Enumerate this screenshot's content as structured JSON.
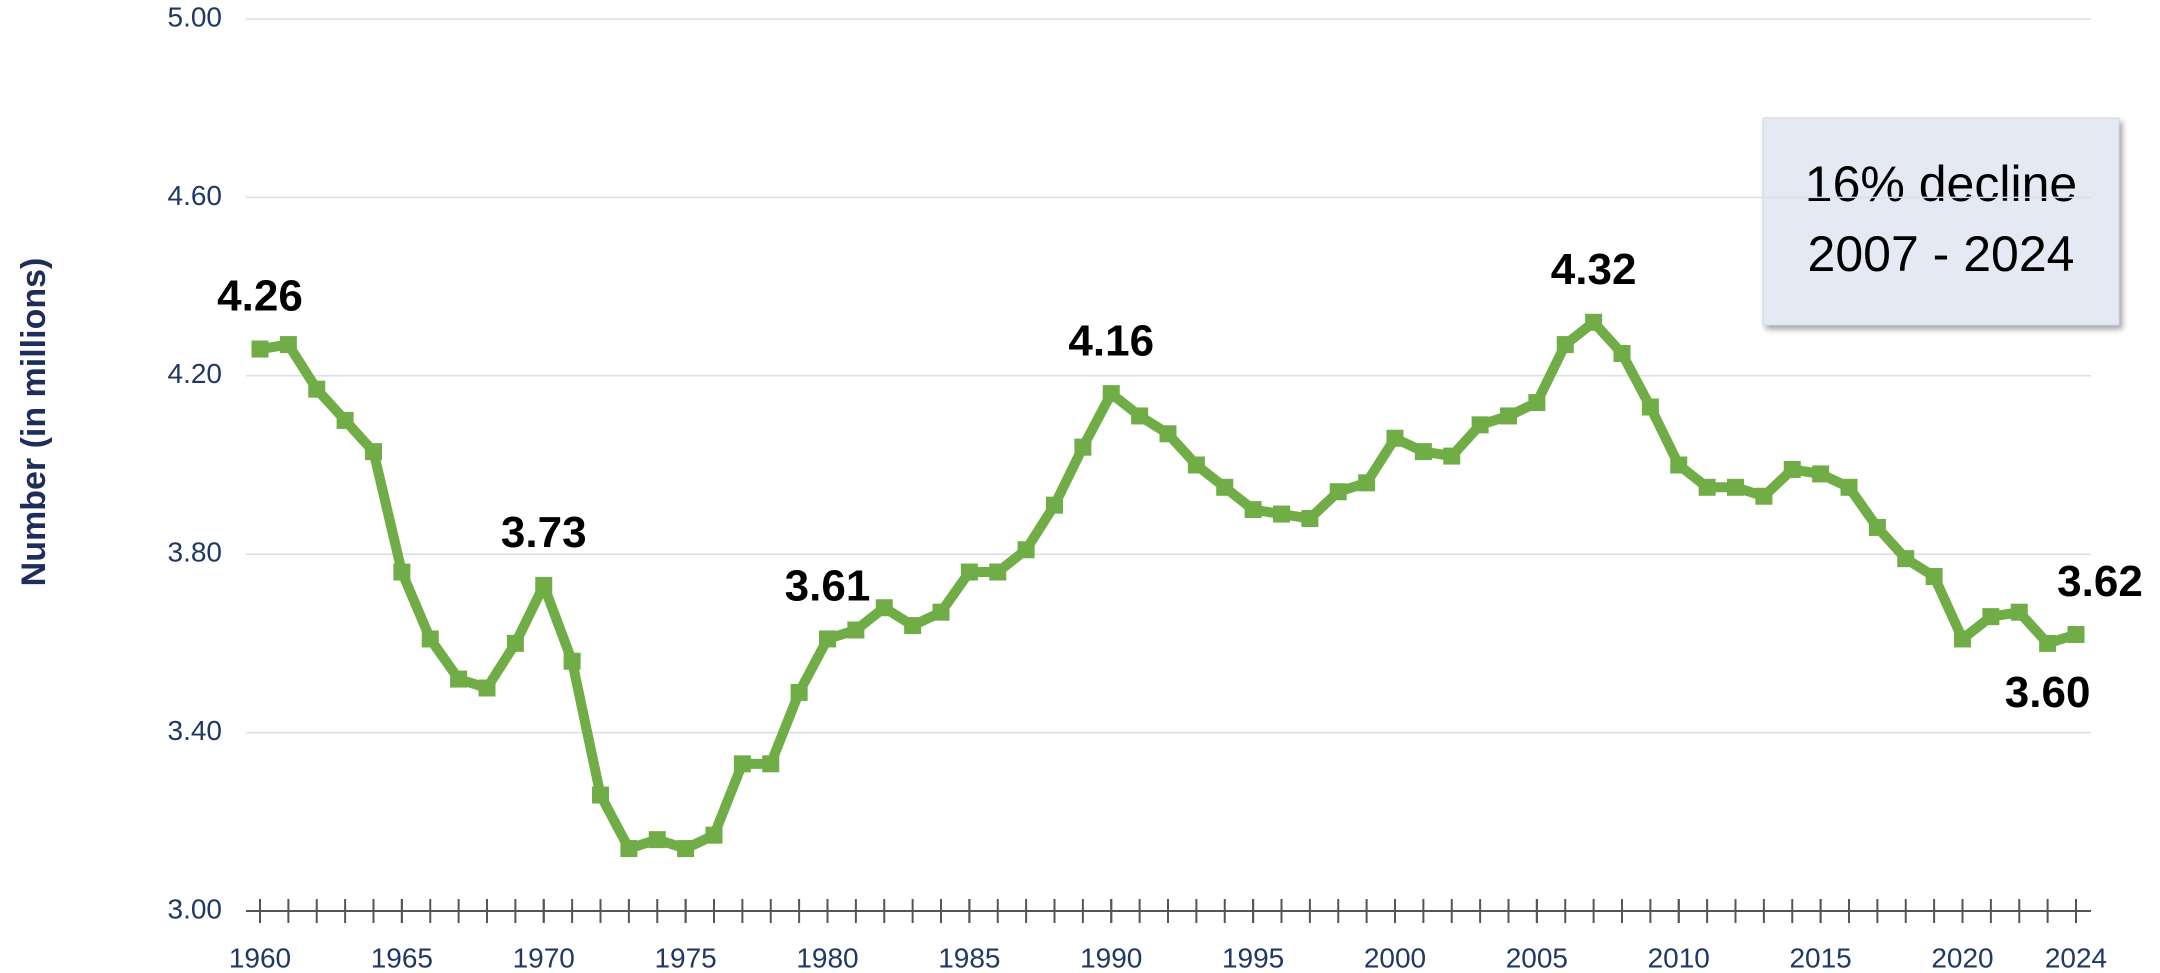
{
  "chart_data": {
    "type": "line",
    "y_label": "Number (in millions)",
    "x": [
      1960,
      1961,
      1962,
      1963,
      1964,
      1965,
      1966,
      1967,
      1968,
      1969,
      1970,
      1971,
      1972,
      1973,
      1974,
      1975,
      1976,
      1977,
      1978,
      1979,
      1980,
      1981,
      1982,
      1983,
      1984,
      1985,
      1986,
      1987,
      1988,
      1989,
      1990,
      1991,
      1992,
      1993,
      1994,
      1995,
      1996,
      1997,
      1998,
      1999,
      2000,
      2001,
      2002,
      2003,
      2004,
      2005,
      2006,
      2007,
      2008,
      2009,
      2010,
      2011,
      2012,
      2013,
      2014,
      2015,
      2016,
      2017,
      2018,
      2019,
      2020,
      2021,
      2022,
      2023,
      2024
    ],
    "series": [
      {
        "color": "#70ad47",
        "values": [
          4.26,
          4.27,
          4.17,
          4.1,
          4.03,
          3.76,
          3.61,
          3.52,
          3.5,
          3.6,
          3.73,
          3.56,
          3.26,
          3.14,
          3.16,
          3.14,
          3.17,
          3.33,
          3.33,
          3.49,
          3.61,
          3.63,
          3.68,
          3.64,
          3.67,
          3.76,
          3.76,
          3.81,
          3.91,
          4.04,
          4.16,
          4.11,
          4.07,
          4.0,
          3.95,
          3.9,
          3.89,
          3.88,
          3.94,
          3.96,
          4.06,
          4.03,
          4.02,
          4.09,
          4.11,
          4.14,
          4.27,
          4.32,
          4.25,
          4.13,
          4.0,
          3.95,
          3.95,
          3.93,
          3.99,
          3.98,
          3.95,
          3.86,
          3.79,
          3.75,
          3.61,
          3.66,
          3.67,
          3.6,
          3.62
        ],
        "value_labels": [
          "4.26",
          null,
          null,
          null,
          null,
          null,
          null,
          null,
          null,
          null,
          "3.73",
          null,
          null,
          null,
          null,
          null,
          null,
          null,
          null,
          null,
          "3.61",
          null,
          null,
          null,
          null,
          null,
          null,
          null,
          null,
          null,
          "4.16",
          null,
          null,
          null,
          null,
          null,
          null,
          null,
          null,
          null,
          null,
          null,
          null,
          null,
          null,
          null,
          null,
          "4.32",
          null,
          null,
          null,
          null,
          null,
          null,
          null,
          null,
          null,
          null,
          null,
          null,
          null,
          null,
          null,
          "3.60",
          "3.62"
        ]
      }
    ],
    "xlim": [
      1960,
      2024
    ],
    "xticks": [
      1960,
      1965,
      1970,
      1975,
      1980,
      1985,
      1990,
      1995,
      2000,
      2005,
      2010,
      2015,
      2020,
      2024
    ],
    "ylim": [
      3,
      5
    ],
    "yticks": [
      {
        "value": 3,
        "label": "3.00"
      },
      {
        "value": 3.4,
        "label": "3.40"
      },
      {
        "value": 3.8,
        "label": "3.80"
      },
      {
        "value": 4.2,
        "label": "4.20"
      },
      {
        "value": 4.6,
        "label": "4.60"
      },
      {
        "value": 5,
        "label": "5.00"
      }
    ],
    "grid": true,
    "annotation": [
      "16% decline",
      "2007 - 2024"
    ]
  }
}
